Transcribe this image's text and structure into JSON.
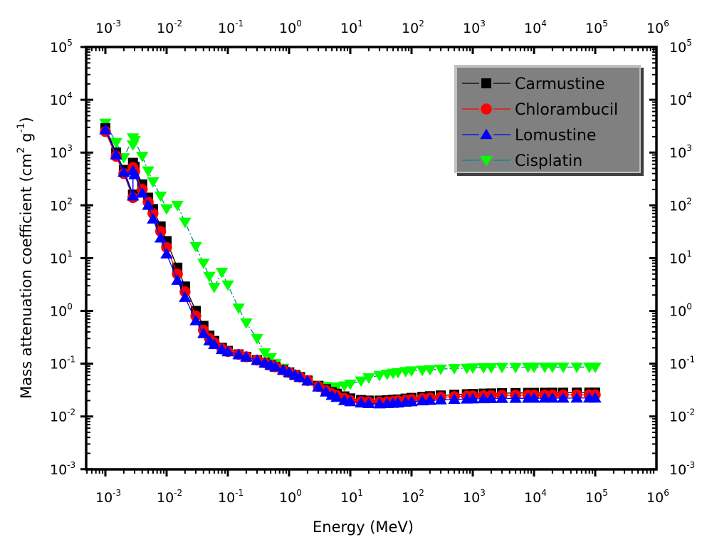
{
  "chart_data": {
    "type": "scatter",
    "title": "",
    "xlabel": "Energy (MeV)",
    "ylabel_main": "Mass attenuation coefficient (cm",
    "ylabel_sup1": "2",
    "ylabel_mid": " g",
    "ylabel_sup2": "-1",
    "ylabel_end": ")",
    "xscale": "log",
    "yscale": "log",
    "xlim": [
      0.0005,
      1000000
    ],
    "ylim": [
      0.001,
      100000
    ],
    "grid": false,
    "legend_position": "top-right",
    "x_tick_labels": [
      {
        "base": "10",
        "exp": "-3"
      },
      {
        "base": "10",
        "exp": "-2"
      },
      {
        "base": "10",
        "exp": "-1"
      },
      {
        "base": "10",
        "exp": "0"
      },
      {
        "base": "10",
        "exp": "1"
      },
      {
        "base": "10",
        "exp": "2"
      },
      {
        "base": "10",
        "exp": "3"
      },
      {
        "base": "10",
        "exp": "4"
      },
      {
        "base": "10",
        "exp": "5"
      },
      {
        "base": "10",
        "exp": "6"
      }
    ],
    "y_tick_labels": [
      {
        "base": "10",
        "exp": "5"
      },
      {
        "base": "10",
        "exp": "4"
      },
      {
        "base": "10",
        "exp": "3"
      },
      {
        "base": "10",
        "exp": "2"
      },
      {
        "base": "10",
        "exp": "1"
      },
      {
        "base": "10",
        "exp": "0"
      },
      {
        "base": "10",
        "exp": "-1"
      },
      {
        "base": "10",
        "exp": "-2"
      },
      {
        "base": "10",
        "exp": "-3"
      }
    ],
    "x_tick_values": [
      0.001,
      0.01,
      0.1,
      1,
      10,
      100,
      1000,
      10000,
      100000,
      1000000
    ],
    "y_tick_values": [
      100000,
      10000,
      1000,
      100,
      10,
      1,
      0.1,
      0.01,
      0.001
    ],
    "x": [
      0.001,
      0.0015,
      0.002,
      0.00282,
      0.00282,
      0.003,
      0.004,
      0.005,
      0.006,
      0.008,
      0.01,
      0.015,
      0.02,
      0.03,
      0.04,
      0.05,
      0.06,
      0.08,
      0.1,
      0.15,
      0.2,
      0.3,
      0.4,
      0.5,
      0.6,
      0.8,
      1,
      1.25,
      1.5,
      2,
      3,
      4,
      5,
      6,
      8,
      10,
      15,
      20,
      30,
      40,
      50,
      60,
      80,
      100,
      150,
      200,
      300,
      500,
      800,
      1000,
      1500,
      2000,
      3000,
      5000,
      8000,
      10000,
      15000,
      20000,
      30000,
      50000,
      80000,
      100000
    ],
    "series": [
      {
        "name": "Carmustine",
        "color": "#000000",
        "line_color": "#000000",
        "marker": "square",
        "values": [
          2900,
          1000,
          470,
          160,
          640,
          540,
          250,
          140,
          85,
          40,
          21,
          6.6,
          2.9,
          1.0,
          0.52,
          0.34,
          0.27,
          0.2,
          0.175,
          0.15,
          0.135,
          0.117,
          0.104,
          0.094,
          0.087,
          0.076,
          0.068,
          0.061,
          0.056,
          0.048,
          0.038,
          0.033,
          0.029,
          0.027,
          0.024,
          0.022,
          0.0205,
          0.02,
          0.02,
          0.0203,
          0.0207,
          0.021,
          0.0218,
          0.0225,
          0.0235,
          0.0242,
          0.025,
          0.0258,
          0.0264,
          0.0267,
          0.0271,
          0.0273,
          0.0276,
          0.0278,
          0.028,
          0.028,
          0.0281,
          0.0282,
          0.0282,
          0.0283,
          0.0283,
          0.0283
        ]
      },
      {
        "name": "Chlorambucil",
        "color": "#ff0000",
        "line_color": "#ff0000",
        "marker": "circle",
        "values": [
          2500,
          850,
          400,
          140,
          520,
          440,
          200,
          115,
          70,
          32,
          16,
          5.0,
          2.3,
          0.8,
          0.43,
          0.3,
          0.25,
          0.19,
          0.17,
          0.15,
          0.135,
          0.117,
          0.104,
          0.094,
          0.087,
          0.076,
          0.068,
          0.061,
          0.056,
          0.048,
          0.037,
          0.031,
          0.027,
          0.025,
          0.022,
          0.02,
          0.019,
          0.0188,
          0.0187,
          0.019,
          0.0193,
          0.0197,
          0.0203,
          0.021,
          0.0218,
          0.0224,
          0.0231,
          0.0237,
          0.0242,
          0.0244,
          0.0247,
          0.0249,
          0.0251,
          0.0253,
          0.0254,
          0.0255,
          0.0255,
          0.0256,
          0.0256,
          0.0257,
          0.0257,
          0.0257
        ]
      },
      {
        "name": "Lomustine",
        "color": "#0000ff",
        "line_color": "#0000ff",
        "marker": "triangle-up",
        "values": [
          2700,
          900,
          420,
          150,
          450,
          380,
          170,
          100,
          55,
          24,
          12,
          3.8,
          1.8,
          0.65,
          0.37,
          0.27,
          0.23,
          0.185,
          0.168,
          0.148,
          0.134,
          0.116,
          0.103,
          0.094,
          0.087,
          0.076,
          0.068,
          0.061,
          0.055,
          0.047,
          0.036,
          0.029,
          0.025,
          0.023,
          0.02,
          0.019,
          0.018,
          0.0175,
          0.0173,
          0.0175,
          0.0177,
          0.018,
          0.0186,
          0.019,
          0.0197,
          0.0201,
          0.0206,
          0.021,
          0.0213,
          0.0215,
          0.0217,
          0.0218,
          0.0219,
          0.022,
          0.0221,
          0.0221,
          0.0222,
          0.0222,
          0.0222,
          0.0223,
          0.0223,
          0.0223
        ]
      },
      {
        "name": "Cisplatin",
        "color": "#00ff00",
        "line_color": "#008b8b",
        "marker": "triangle-down",
        "values": [
          3600,
          1550,
          800,
          1900,
          1400,
          1700,
          850,
          450,
          280,
          150,
          86,
          100,
          48,
          16.6,
          8.0,
          4.5,
          2.8,
          5.4,
          3.1,
          1.13,
          0.59,
          0.3,
          0.16,
          0.13,
          0.1,
          0.082,
          0.07,
          0.061,
          0.055,
          0.047,
          0.039,
          0.037,
          0.036,
          0.036,
          0.038,
          0.041,
          0.047,
          0.054,
          0.06,
          0.063,
          0.066,
          0.068,
          0.071,
          0.073,
          0.075,
          0.077,
          0.079,
          0.081,
          0.082,
          0.083,
          0.084,
          0.084,
          0.085,
          0.085,
          0.086,
          0.086,
          0.086,
          0.086,
          0.086,
          0.086,
          0.086,
          0.086
        ]
      }
    ]
  },
  "colors": {
    "legend_background": "#808080",
    "legend_highlight": "#c0c0c0",
    "legend_shadow": "#404040",
    "axis": "#000000"
  }
}
